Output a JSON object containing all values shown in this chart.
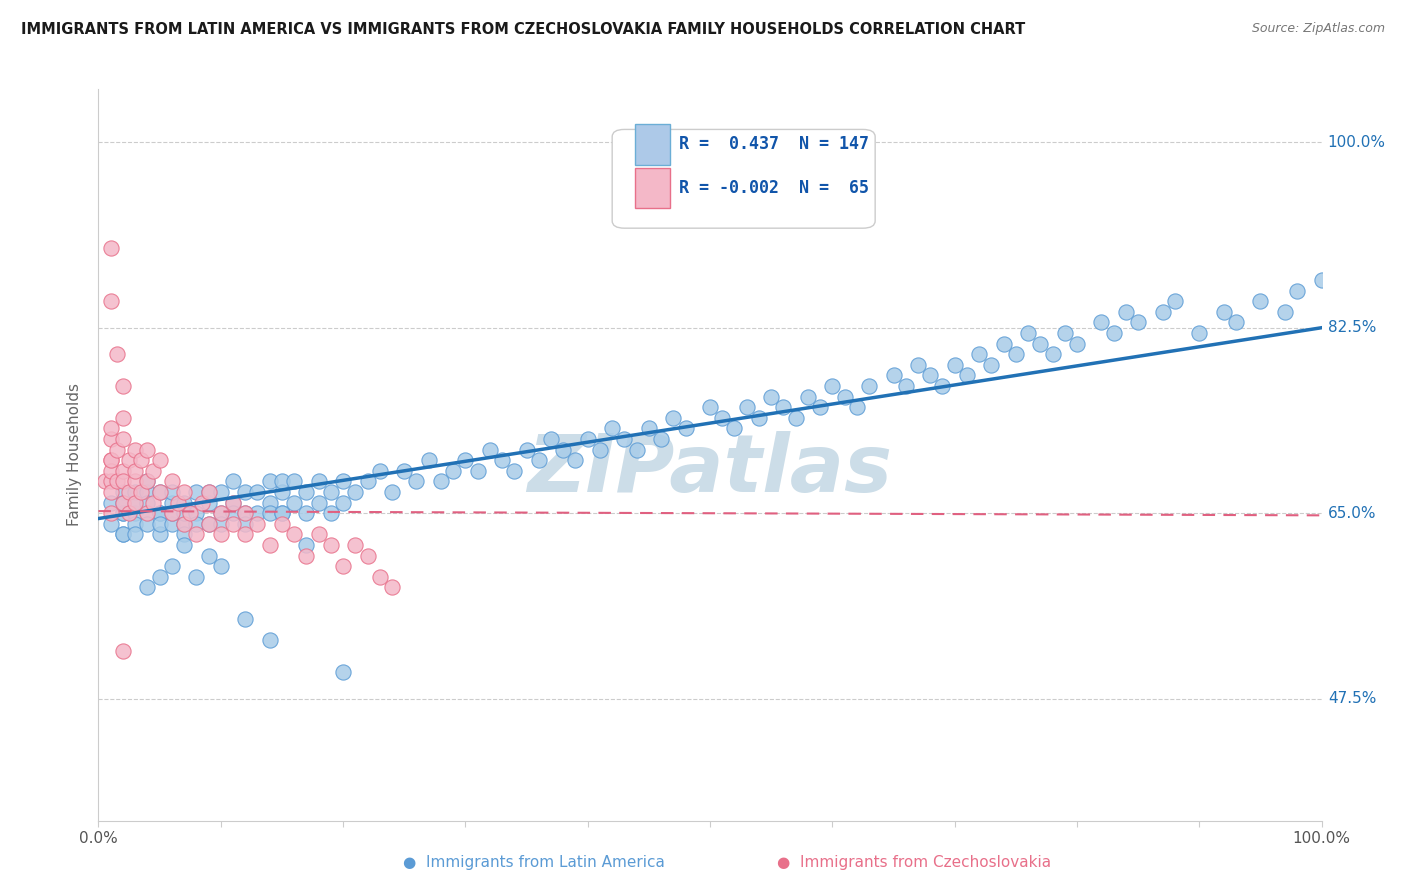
{
  "title": "IMMIGRANTS FROM LATIN AMERICA VS IMMIGRANTS FROM CZECHOSLOVAKIA FAMILY HOUSEHOLDS CORRELATION CHART",
  "source": "Source: ZipAtlas.com",
  "ylabel": "Family Households",
  "y_ticks": [
    0.475,
    0.65,
    0.825,
    1.0
  ],
  "y_tick_labels": [
    "47.5%",
    "65.0%",
    "82.5%",
    "100.0%"
  ],
  "legend1_label": "R =  0.437  N = 147",
  "legend2_label": "R = -0.002  N =  65",
  "blue_color": "#a8cce8",
  "blue_edge_color": "#5b9bd5",
  "pink_color": "#f4b8c8",
  "pink_edge_color": "#e8708a",
  "blue_line_color": "#2171b5",
  "pink_line_color": "#e06080",
  "watermark": "ZIPatlas",
  "watermark_color": "#ccdde8",
  "background_color": "#ffffff",
  "grid_color": "#cccccc",
  "blue_scatter_x": [
    0.01,
    0.01,
    0.02,
    0.02,
    0.02,
    0.02,
    0.02,
    0.02,
    0.03,
    0.03,
    0.03,
    0.03,
    0.03,
    0.04,
    0.04,
    0.04,
    0.04,
    0.04,
    0.05,
    0.05,
    0.05,
    0.05,
    0.05,
    0.06,
    0.06,
    0.06,
    0.06,
    0.07,
    0.07,
    0.07,
    0.07,
    0.08,
    0.08,
    0.08,
    0.09,
    0.09,
    0.09,
    0.1,
    0.1,
    0.1,
    0.11,
    0.11,
    0.11,
    0.12,
    0.12,
    0.12,
    0.13,
    0.13,
    0.14,
    0.14,
    0.14,
    0.15,
    0.15,
    0.15,
    0.16,
    0.16,
    0.17,
    0.17,
    0.18,
    0.18,
    0.19,
    0.19,
    0.2,
    0.2,
    0.21,
    0.22,
    0.23,
    0.24,
    0.25,
    0.26,
    0.27,
    0.28,
    0.29,
    0.3,
    0.31,
    0.32,
    0.33,
    0.34,
    0.35,
    0.36,
    0.37,
    0.38,
    0.39,
    0.4,
    0.41,
    0.42,
    0.43,
    0.44,
    0.45,
    0.46,
    0.47,
    0.48,
    0.5,
    0.51,
    0.52,
    0.53,
    0.54,
    0.55,
    0.56,
    0.57,
    0.58,
    0.59,
    0.6,
    0.61,
    0.62,
    0.63,
    0.65,
    0.66,
    0.67,
    0.68,
    0.69,
    0.7,
    0.71,
    0.72,
    0.73,
    0.74,
    0.75,
    0.76,
    0.77,
    0.78,
    0.79,
    0.8,
    0.82,
    0.83,
    0.84,
    0.85,
    0.87,
    0.88,
    0.9,
    0.92,
    0.93,
    0.95,
    0.97,
    0.98,
    1.0,
    0.04,
    0.05,
    0.06,
    0.07,
    0.08,
    0.09,
    0.1,
    0.12,
    0.14,
    0.15,
    0.17,
    0.2
  ],
  "blue_scatter_y": [
    0.66,
    0.64,
    0.65,
    0.63,
    0.67,
    0.65,
    0.63,
    0.66,
    0.65,
    0.67,
    0.64,
    0.66,
    0.63,
    0.65,
    0.67,
    0.64,
    0.66,
    0.68,
    0.65,
    0.63,
    0.67,
    0.65,
    0.64,
    0.66,
    0.64,
    0.67,
    0.65,
    0.64,
    0.66,
    0.65,
    0.63,
    0.65,
    0.67,
    0.64,
    0.66,
    0.64,
    0.67,
    0.65,
    0.67,
    0.64,
    0.66,
    0.65,
    0.68,
    0.65,
    0.67,
    0.64,
    0.67,
    0.65,
    0.66,
    0.68,
    0.65,
    0.67,
    0.65,
    0.68,
    0.66,
    0.68,
    0.67,
    0.65,
    0.68,
    0.66,
    0.67,
    0.65,
    0.68,
    0.66,
    0.67,
    0.68,
    0.69,
    0.67,
    0.69,
    0.68,
    0.7,
    0.68,
    0.69,
    0.7,
    0.69,
    0.71,
    0.7,
    0.69,
    0.71,
    0.7,
    0.72,
    0.71,
    0.7,
    0.72,
    0.71,
    0.73,
    0.72,
    0.71,
    0.73,
    0.72,
    0.74,
    0.73,
    0.75,
    0.74,
    0.73,
    0.75,
    0.74,
    0.76,
    0.75,
    0.74,
    0.76,
    0.75,
    0.77,
    0.76,
    0.75,
    0.77,
    0.78,
    0.77,
    0.79,
    0.78,
    0.77,
    0.79,
    0.78,
    0.8,
    0.79,
    0.81,
    0.8,
    0.82,
    0.81,
    0.8,
    0.82,
    0.81,
    0.83,
    0.82,
    0.84,
    0.83,
    0.84,
    0.85,
    0.82,
    0.84,
    0.83,
    0.85,
    0.84,
    0.86,
    0.87,
    0.58,
    0.59,
    0.6,
    0.62,
    0.59,
    0.61,
    0.6,
    0.55,
    0.53,
    0.65,
    0.62,
    0.5
  ],
  "pink_scatter_x": [
    0.005,
    0.01,
    0.01,
    0.01,
    0.01,
    0.01,
    0.01,
    0.01,
    0.01,
    0.015,
    0.015,
    0.02,
    0.02,
    0.02,
    0.02,
    0.025,
    0.025,
    0.025,
    0.03,
    0.03,
    0.03,
    0.03,
    0.035,
    0.035,
    0.04,
    0.04,
    0.04,
    0.045,
    0.045,
    0.05,
    0.05,
    0.06,
    0.06,
    0.065,
    0.07,
    0.07,
    0.075,
    0.08,
    0.085,
    0.09,
    0.09,
    0.1,
    0.1,
    0.11,
    0.11,
    0.12,
    0.12,
    0.13,
    0.14,
    0.15,
    0.16,
    0.17,
    0.18,
    0.19,
    0.2,
    0.21,
    0.22,
    0.23,
    0.24,
    0.02,
    0.015,
    0.01,
    0.02,
    0.01,
    0.02
  ],
  "pink_scatter_y": [
    0.68,
    0.7,
    0.68,
    0.65,
    0.72,
    0.69,
    0.67,
    0.73,
    0.7,
    0.68,
    0.71,
    0.69,
    0.66,
    0.72,
    0.68,
    0.7,
    0.67,
    0.65,
    0.71,
    0.68,
    0.66,
    0.69,
    0.7,
    0.67,
    0.65,
    0.68,
    0.71,
    0.66,
    0.69,
    0.67,
    0.7,
    0.65,
    0.68,
    0.66,
    0.64,
    0.67,
    0.65,
    0.63,
    0.66,
    0.64,
    0.67,
    0.65,
    0.63,
    0.64,
    0.66,
    0.63,
    0.65,
    0.64,
    0.62,
    0.64,
    0.63,
    0.61,
    0.63,
    0.62,
    0.6,
    0.62,
    0.61,
    0.59,
    0.58,
    0.77,
    0.8,
    0.85,
    0.74,
    0.9,
    0.52
  ]
}
